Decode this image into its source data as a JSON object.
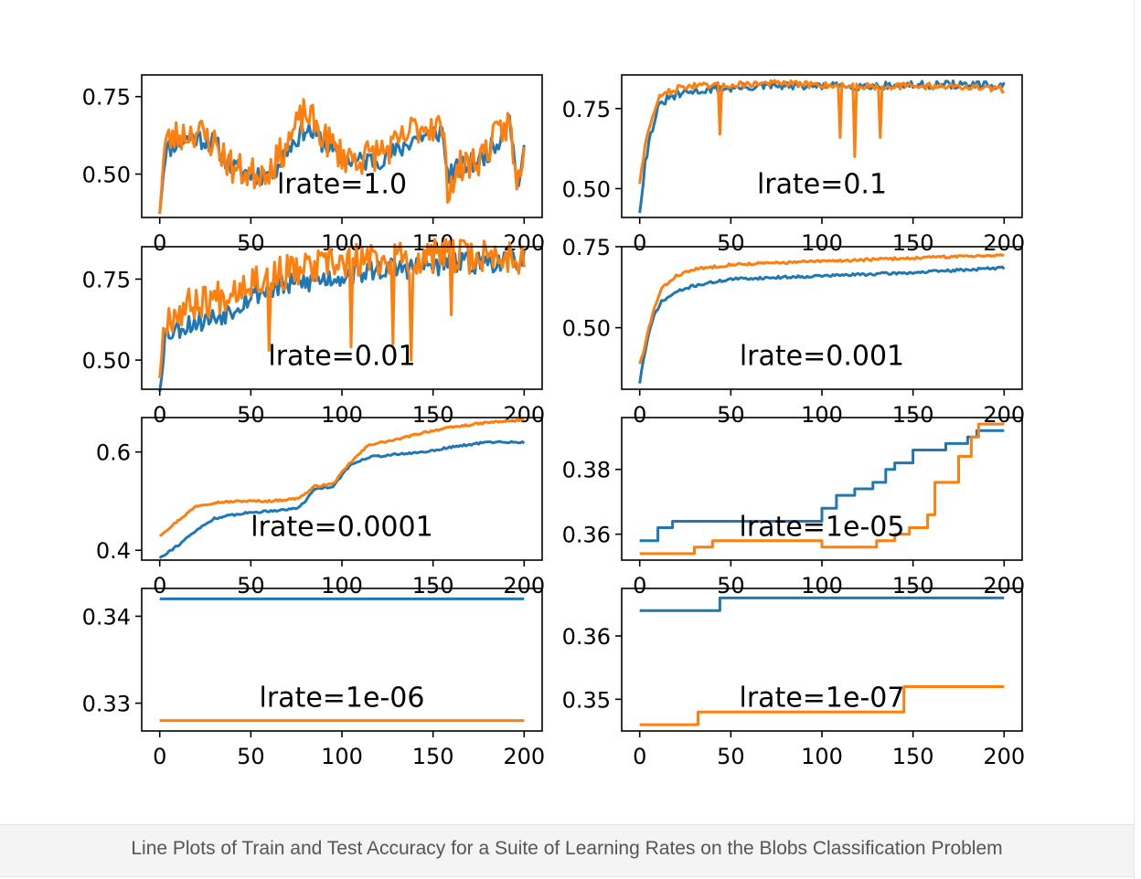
{
  "caption": "Line Plots of Train and Test Accuracy for a Suite of Learning Rates on the Blobs Classification Problem",
  "colors": {
    "train": "#1f77b4",
    "test": "#ff7f0e",
    "caption_text": "#555555",
    "caption_bg": "#f4f4f4"
  },
  "chart_data": [
    {
      "type": "line",
      "annotation": "lrate=1.0",
      "xlim": [
        0,
        200
      ],
      "xticks": [
        "0",
        "50",
        "100",
        "150",
        "200"
      ],
      "ylim": [
        0.36,
        0.82
      ],
      "yticks": [
        {
          "v": 0.5,
          "label": "0.50"
        },
        {
          "v": 0.75,
          "label": "0.75"
        }
      ],
      "series": [
        {
          "kind": "noisy",
          "color": "#1f77b4",
          "seed": 11,
          "amp": 0.035,
          "anchors": [
            [
              0,
              0.39
            ],
            [
              3,
              0.57
            ],
            [
              8,
              0.6
            ],
            [
              20,
              0.62
            ],
            [
              30,
              0.6
            ],
            [
              40,
              0.52
            ],
            [
              50,
              0.5
            ],
            [
              60,
              0.5
            ],
            [
              65,
              0.53
            ],
            [
              70,
              0.58
            ],
            [
              80,
              0.65
            ],
            [
              90,
              0.6
            ],
            [
              100,
              0.55
            ],
            [
              110,
              0.54
            ],
            [
              120,
              0.55
            ],
            [
              130,
              0.57
            ],
            [
              140,
              0.62
            ],
            [
              150,
              0.63
            ],
            [
              155,
              0.64
            ],
            [
              158,
              0.5
            ],
            [
              165,
              0.52
            ],
            [
              175,
              0.54
            ],
            [
              185,
              0.6
            ],
            [
              192,
              0.7
            ],
            [
              196,
              0.46
            ],
            [
              200,
              0.56
            ]
          ]
        },
        {
          "kind": "noisy",
          "color": "#ff7f0e",
          "seed": 23,
          "amp": 0.055,
          "anchors": [
            [
              0,
              0.4
            ],
            [
              3,
              0.6
            ],
            [
              8,
              0.62
            ],
            [
              20,
              0.64
            ],
            [
              30,
              0.6
            ],
            [
              40,
              0.52
            ],
            [
              50,
              0.5
            ],
            [
              60,
              0.52
            ],
            [
              65,
              0.55
            ],
            [
              70,
              0.6
            ],
            [
              80,
              0.7
            ],
            [
              90,
              0.62
            ],
            [
              100,
              0.56
            ],
            [
              110,
              0.55
            ],
            [
              120,
              0.57
            ],
            [
              130,
              0.59
            ],
            [
              140,
              0.65
            ],
            [
              150,
              0.66
            ],
            [
              155,
              0.65
            ],
            [
              158,
              0.46
            ],
            [
              165,
              0.52
            ],
            [
              175,
              0.55
            ],
            [
              185,
              0.62
            ],
            [
              192,
              0.67
            ],
            [
              196,
              0.45
            ],
            [
              200,
              0.6
            ]
          ]
        }
      ]
    },
    {
      "type": "line",
      "annotation": "lrate=0.1",
      "xlim": [
        0,
        200
      ],
      "xticks": [
        "0",
        "50",
        "100",
        "150",
        "200"
      ],
      "ylim": [
        0.41,
        0.855
      ],
      "yticks": [
        {
          "v": 0.5,
          "label": "0.50"
        },
        {
          "v": 0.75,
          "label": "0.75"
        }
      ],
      "series": [
        {
          "kind": "noisy",
          "color": "#1f77b4",
          "seed": 31,
          "amp": 0.012,
          "anchors": [
            [
              0,
              0.43
            ],
            [
              3,
              0.58
            ],
            [
              6,
              0.67
            ],
            [
              10,
              0.75
            ],
            [
              15,
              0.78
            ],
            [
              25,
              0.8
            ],
            [
              40,
              0.81
            ],
            [
              70,
              0.82
            ],
            [
              120,
              0.82
            ],
            [
              170,
              0.825
            ],
            [
              200,
              0.82
            ]
          ]
        },
        {
          "kind": "noisy",
          "color": "#ff7f0e",
          "seed": 47,
          "amp": 0.01,
          "anchors": [
            [
              0,
              0.52
            ],
            [
              3,
              0.64
            ],
            [
              6,
              0.7
            ],
            [
              10,
              0.78
            ],
            [
              15,
              0.8
            ],
            [
              25,
              0.82
            ],
            [
              40,
              0.82
            ],
            [
              70,
              0.83
            ],
            [
              120,
              0.82
            ],
            [
              170,
              0.82
            ],
            [
              200,
              0.81
            ]
          ],
          "dips": [
            [
              44,
              0.67
            ],
            [
              110,
              0.66
            ],
            [
              118,
              0.6
            ],
            [
              132,
              0.66
            ]
          ]
        }
      ]
    },
    {
      "type": "line",
      "annotation": "lrate=0.01",
      "xlim": [
        0,
        200
      ],
      "xticks": [
        "0",
        "50",
        "100",
        "150",
        "200"
      ],
      "ylim": [
        0.41,
        0.85
      ],
      "yticks": [
        {
          "v": 0.5,
          "label": "0.50"
        },
        {
          "v": 0.75,
          "label": "0.75"
        }
      ],
      "series": [
        {
          "kind": "noisy",
          "color": "#1f77b4",
          "seed": 53,
          "amp": 0.035,
          "anchors": [
            [
              0,
              0.42
            ],
            [
              3,
              0.58
            ],
            [
              10,
              0.6
            ],
            [
              20,
              0.62
            ],
            [
              30,
              0.63
            ],
            [
              40,
              0.66
            ],
            [
              50,
              0.7
            ],
            [
              60,
              0.72
            ],
            [
              80,
              0.74
            ],
            [
              100,
              0.76
            ],
            [
              120,
              0.78
            ],
            [
              150,
              0.79
            ],
            [
              170,
              0.8
            ],
            [
              200,
              0.81
            ]
          ]
        },
        {
          "kind": "noisy",
          "color": "#ff7f0e",
          "seed": 67,
          "amp": 0.055,
          "anchors": [
            [
              0,
              0.47
            ],
            [
              3,
              0.63
            ],
            [
              10,
              0.65
            ],
            [
              20,
              0.68
            ],
            [
              30,
              0.69
            ],
            [
              40,
              0.72
            ],
            [
              50,
              0.75
            ],
            [
              60,
              0.76
            ],
            [
              80,
              0.78
            ],
            [
              100,
              0.8
            ],
            [
              120,
              0.81
            ],
            [
              150,
              0.82
            ],
            [
              170,
              0.82
            ],
            [
              200,
              0.82
            ]
          ],
          "dips": [
            [
              60,
              0.53
            ],
            [
              105,
              0.54
            ],
            [
              128,
              0.55
            ],
            [
              138,
              0.5
            ],
            [
              160,
              0.64
            ]
          ]
        }
      ]
    },
    {
      "type": "line",
      "annotation": "lrate=0.001",
      "xlim": [
        0,
        200
      ],
      "xticks": [
        "0",
        "50",
        "100",
        "150",
        "200"
      ],
      "ylim": [
        0.31,
        0.75
      ],
      "yticks": [
        {
          "v": 0.5,
          "label": "0.50"
        },
        {
          "v": 0.75,
          "label": "0.75"
        }
      ],
      "series": [
        {
          "kind": "noisy",
          "color": "#1f77b4",
          "seed": 71,
          "amp": 0.004,
          "anchors": [
            [
              0,
              0.33
            ],
            [
              2,
              0.4
            ],
            [
              5,
              0.48
            ],
            [
              8,
              0.54
            ],
            [
              12,
              0.58
            ],
            [
              20,
              0.61
            ],
            [
              30,
              0.63
            ],
            [
              50,
              0.65
            ],
            [
              100,
              0.66
            ],
            [
              150,
              0.67
            ],
            [
              200,
              0.685
            ]
          ]
        },
        {
          "kind": "noisy",
          "color": "#ff7f0e",
          "seed": 83,
          "amp": 0.004,
          "anchors": [
            [
              0,
              0.39
            ],
            [
              2,
              0.42
            ],
            [
              5,
              0.5
            ],
            [
              8,
              0.56
            ],
            [
              12,
              0.62
            ],
            [
              20,
              0.66
            ],
            [
              30,
              0.68
            ],
            [
              50,
              0.695
            ],
            [
              100,
              0.705
            ],
            [
              150,
              0.715
            ],
            [
              200,
              0.725
            ]
          ]
        }
      ]
    },
    {
      "type": "line",
      "annotation": "lrate=0.0001",
      "xlim": [
        0,
        200
      ],
      "xticks": [
        "0",
        "50",
        "100",
        "150",
        "200"
      ],
      "ylim": [
        0.38,
        0.67
      ],
      "yticks": [
        {
          "v": 0.4,
          "label": "0.4"
        },
        {
          "v": 0.6,
          "label": "0.6"
        }
      ],
      "series": [
        {
          "kind": "noisy",
          "color": "#1f77b4",
          "seed": 91,
          "amp": 0.002,
          "anchors": [
            [
              0,
              0.385
            ],
            [
              10,
              0.41
            ],
            [
              20,
              0.44
            ],
            [
              30,
              0.465
            ],
            [
              45,
              0.475
            ],
            [
              60,
              0.48
            ],
            [
              75,
              0.485
            ],
            [
              80,
              0.5
            ],
            [
              85,
              0.525
            ],
            [
              95,
              0.53
            ],
            [
              105,
              0.575
            ],
            [
              115,
              0.59
            ],
            [
              130,
              0.595
            ],
            [
              145,
              0.6
            ],
            [
              160,
              0.61
            ],
            [
              180,
              0.62
            ],
            [
              200,
              0.62
            ]
          ]
        },
        {
          "kind": "noisy",
          "color": "#ff7f0e",
          "seed": 97,
          "amp": 0.002,
          "anchors": [
            [
              0,
              0.43
            ],
            [
              10,
              0.46
            ],
            [
              20,
              0.49
            ],
            [
              30,
              0.497
            ],
            [
              45,
              0.5
            ],
            [
              60,
              0.5
            ],
            [
              75,
              0.505
            ],
            [
              80,
              0.515
            ],
            [
              85,
              0.53
            ],
            [
              95,
              0.535
            ],
            [
              105,
              0.58
            ],
            [
              115,
              0.615
            ],
            [
              130,
              0.625
            ],
            [
              145,
              0.64
            ],
            [
              160,
              0.65
            ],
            [
              180,
              0.66
            ],
            [
              200,
              0.665
            ]
          ]
        }
      ]
    },
    {
      "type": "line",
      "annotation": "lrate=1e-05",
      "xlim": [
        0,
        200
      ],
      "xticks": [
        "0",
        "50",
        "100",
        "150",
        "200"
      ],
      "ylim": [
        0.352,
        0.396
      ],
      "yticks": [
        {
          "v": 0.36,
          "label": "0.36"
        },
        {
          "v": 0.38,
          "label": "0.38"
        }
      ],
      "series": [
        {
          "kind": "step",
          "color": "#1f77b4",
          "points": [
            [
              0,
              0.358
            ],
            [
              10,
              0.362
            ],
            [
              18,
              0.364
            ],
            [
              100,
              0.368
            ],
            [
              108,
              0.372
            ],
            [
              118,
              0.374
            ],
            [
              128,
              0.376
            ],
            [
              135,
              0.38
            ],
            [
              140,
              0.382
            ],
            [
              150,
              0.386
            ],
            [
              168,
              0.388
            ],
            [
              180,
              0.39
            ],
            [
              185,
              0.392
            ],
            [
              200,
              0.392
            ]
          ]
        },
        {
          "kind": "step",
          "color": "#ff7f0e",
          "points": [
            [
              0,
              0.354
            ],
            [
              30,
              0.356
            ],
            [
              40,
              0.358
            ],
            [
              100,
              0.356
            ],
            [
              130,
              0.358
            ],
            [
              140,
              0.36
            ],
            [
              148,
              0.362
            ],
            [
              158,
              0.366
            ],
            [
              162,
              0.376
            ],
            [
              175,
              0.384
            ],
            [
              182,
              0.39
            ],
            [
              186,
              0.394
            ],
            [
              200,
              0.394
            ]
          ]
        }
      ]
    },
    {
      "type": "line",
      "annotation": "lrate=1e-06",
      "xlim": [
        0,
        200
      ],
      "xticks": [
        "0",
        "50",
        "100",
        "150",
        "200"
      ],
      "ylim": [
        0.3268,
        0.3432
      ],
      "yticks": [
        {
          "v": 0.33,
          "label": "0.33"
        },
        {
          "v": 0.34,
          "label": "0.34"
        }
      ],
      "series": [
        {
          "kind": "step",
          "color": "#1f77b4",
          "points": [
            [
              0,
              0.342
            ],
            [
              200,
              0.342
            ]
          ]
        },
        {
          "kind": "step",
          "color": "#ff7f0e",
          "points": [
            [
              0,
              0.328
            ],
            [
              200,
              0.328
            ]
          ]
        }
      ]
    },
    {
      "type": "line",
      "annotation": "lrate=1e-07",
      "xlim": [
        0,
        200
      ],
      "xticks": [
        "0",
        "50",
        "100",
        "150",
        "200"
      ],
      "ylim": [
        0.345,
        0.3675
      ],
      "yticks": [
        {
          "v": 0.35,
          "label": "0.35"
        },
        {
          "v": 0.36,
          "label": "0.36"
        }
      ],
      "series": [
        {
          "kind": "step",
          "color": "#1f77b4",
          "points": [
            [
              0,
              0.364
            ],
            [
              44,
              0.366
            ],
            [
              200,
              0.366
            ]
          ]
        },
        {
          "kind": "step",
          "color": "#ff7f0e",
          "points": [
            [
              0,
              0.346
            ],
            [
              32,
              0.348
            ],
            [
              145,
              0.352
            ],
            [
              200,
              0.352
            ]
          ]
        }
      ]
    }
  ]
}
